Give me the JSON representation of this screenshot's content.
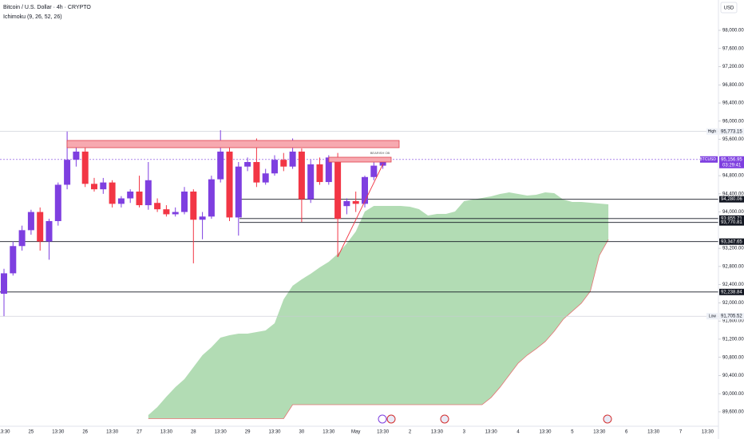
{
  "chart_data": {
    "type": "candlestick",
    "title": "Bitcoin / U.S. Dollar · 4h · CRYPTO",
    "indicator": "Ichimoku (9, 26, 52, 26)",
    "currency": "USD",
    "annotation": "BEARISH OB",
    "up_color": "#7e3fe0",
    "down_color": "#f23645",
    "cloud_color": "#a5d6a7",
    "cloud_edge_color": "#e57373",
    "categories": [
      "13:30",
      null,
      null,
      "25",
      null,
      null,
      "13:30",
      null,
      null,
      "26",
      null,
      null,
      "13:30",
      null,
      null,
      "27",
      null,
      null,
      "13:30",
      null,
      null,
      "28",
      null,
      null,
      "13:30",
      null,
      null,
      "29",
      null,
      null,
      "13:30",
      null,
      null,
      "30",
      null,
      null,
      "13:30",
      null,
      null,
      "May",
      null,
      null,
      "13:30",
      null,
      null,
      "2",
      null,
      null,
      "13:30",
      null,
      null,
      "3",
      null,
      null,
      "13:30",
      null,
      null,
      "4",
      null,
      null,
      "13:30",
      null,
      null,
      "5",
      null,
      null,
      "13:30",
      null,
      null,
      "6",
      null,
      null,
      "13:30",
      null,
      null,
      "7",
      null,
      null,
      "13:30"
    ],
    "open": [
      92200,
      92650,
      93250,
      93600,
      94000,
      93350,
      93800,
      94600,
      95150,
      95330,
      94620,
      94500,
      94650,
      94180,
      94300,
      94450,
      94150,
      94200,
      94060,
      93950,
      94000,
      94450,
      93830,
      93900,
      94720,
      95330,
      93880,
      95000,
      95100,
      94650,
      94850,
      95150,
      95000,
      95330,
      94280,
      95050,
      94660,
      95200,
      94130,
      94240,
      94180,
      94770,
      95020,
      null,
      null,
      null,
      null,
      null,
      null,
      null,
      null,
      null,
      null,
      null,
      null,
      null,
      null,
      null,
      null,
      null,
      null,
      null,
      null,
      null,
      null,
      null,
      null,
      null,
      null,
      null,
      null,
      null,
      null,
      null,
      null,
      null,
      null,
      null,
      null
    ],
    "high": [
      92750,
      93350,
      93700,
      94050,
      94100,
      93850,
      94650,
      95773.15,
      95450,
      95450,
      94750,
      94750,
      94700,
      94350,
      94500,
      94800,
      95100,
      94300,
      94150,
      94100,
      94550,
      94500,
      94000,
      94800,
      95800,
      95550,
      95100,
      95200,
      95620,
      94950,
      95250,
      95300,
      95620,
      95400,
      95150,
      95200,
      95250,
      95300,
      94300,
      94450,
      94800,
      95100,
      95200,
      null,
      null,
      null,
      null,
      null,
      null,
      null,
      null,
      null,
      null,
      null,
      null,
      null,
      null,
      null,
      null,
      null,
      null,
      null,
      null,
      null,
      null,
      null,
      null,
      null,
      null,
      null,
      null,
      null,
      null,
      null,
      null,
      null,
      null,
      null,
      null
    ],
    "low": [
      91705.52,
      92600,
      93150,
      93500,
      93150,
      92950,
      93700,
      94500,
      95000,
      94550,
      94450,
      94400,
      94100,
      94100,
      94200,
      94100,
      94050,
      94000,
      93900,
      93900,
      93950,
      92870,
      93400,
      93850,
      94650,
      93800,
      93480,
      94900,
      94550,
      94600,
      94800,
      94900,
      94950,
      93780,
      94200,
      94600,
      94600,
      93010,
      93950,
      94000,
      94100,
      94700,
      94950,
      null,
      null,
      null,
      null,
      null,
      null,
      null,
      null,
      null,
      null,
      null,
      null,
      null,
      null,
      null,
      null,
      null,
      null,
      null,
      null,
      null,
      null,
      null,
      null,
      null,
      null,
      null,
      null,
      null,
      null,
      null,
      null,
      null,
      null,
      null,
      null
    ],
    "close": [
      92650,
      93250,
      93600,
      94000,
      93350,
      93800,
      94600,
      95150,
      95330,
      94620,
      94500,
      94650,
      94180,
      94300,
      94450,
      94150,
      94700,
      94060,
      93950,
      94000,
      94450,
      93830,
      93900,
      94720,
      95330,
      93880,
      95000,
      95100,
      94650,
      94850,
      95150,
      95000,
      95330,
      94280,
      95050,
      94660,
      95200,
      93850,
      94240,
      94180,
      94770,
      95020,
      95156.95,
      null,
      null,
      null,
      null,
      null,
      null,
      null,
      null,
      null,
      null,
      null,
      null,
      null,
      null,
      null,
      null,
      null,
      null,
      null,
      null,
      null,
      null,
      null,
      null,
      null,
      null,
      null,
      null,
      null,
      null,
      null,
      null,
      null,
      null,
      null,
      null
    ],
    "cloud_upper": [
      null,
      null,
      null,
      null,
      null,
      null,
      null,
      null,
      null,
      null,
      null,
      null,
      null,
      null,
      null,
      null,
      89529,
      89705,
      89934,
      90145,
      90320,
      90583,
      90847,
      91023,
      91234,
      91287,
      91322,
      91322,
      91357,
      91392,
      91550,
      92077,
      92376,
      92517,
      92640,
      92780,
      92903,
      93079,
      93307,
      93571,
      94010,
      94133,
      94133,
      94133,
      94133,
      94116,
      94063,
      93923,
      93958,
      93958,
      94010,
      94239,
      94274,
      94309,
      94344,
      94397,
      94432,
      94397,
      94362,
      94380,
      94432,
      94415,
      94274,
      94221,
      94221,
      94204,
      94186,
      94169,
      null,
      null,
      null,
      null,
      null,
      null,
      null,
      null,
      null,
      null,
      null
    ],
    "cloud_lower": [
      null,
      null,
      null,
      null,
      null,
      null,
      null,
      null,
      null,
      null,
      null,
      null,
      null,
      null,
      null,
      null,
      89450,
      89450,
      89450,
      89450,
      89450,
      89450,
      89450,
      89450,
      89450,
      89450,
      89450,
      89450,
      89450,
      89450,
      89450,
      89450,
      89757,
      89757,
      89757,
      89757,
      89757,
      89757,
      89757,
      89757,
      89757,
      89757,
      89757,
      89757,
      89757,
      89757,
      89757,
      89757,
      89757,
      89757,
      89757,
      89757,
      89757,
      89757,
      89915,
      90145,
      90408,
      90671,
      90847,
      90988,
      91146,
      91374,
      91638,
      91814,
      91990,
      92253,
      93044,
      93395,
      null,
      null,
      null,
      null,
      null,
      null,
      null,
      null,
      null,
      null,
      null
    ],
    "ylim": [
      89318,
      98668
    ],
    "yticks": [
      {
        "value": 98000,
        "label": "98,000.00"
      },
      {
        "value": 97600,
        "label": "97,600.00"
      },
      {
        "value": 97200,
        "label": "97,200.00"
      },
      {
        "value": 96800,
        "label": "96,800.00"
      },
      {
        "value": 96400,
        "label": "96,400.00"
      },
      {
        "value": 96000,
        "label": "96,000.00"
      },
      {
        "value": 95600,
        "label": "95,600.00"
      },
      {
        "value": 94800,
        "label": "94,800.00"
      },
      {
        "value": 94400,
        "label": "94,400.00"
      },
      {
        "value": 94000,
        "label": "94,000.00"
      },
      {
        "value": 93200,
        "label": "93,200.00"
      },
      {
        "value": 92800,
        "label": "92,800.00"
      },
      {
        "value": 92400,
        "label": "92,400.00"
      },
      {
        "value": 92000,
        "label": "92,000.00"
      },
      {
        "value": 91600,
        "label": "91,600.00"
      },
      {
        "value": 91200,
        "label": "91,200.00"
      },
      {
        "value": 90800,
        "label": "90,800.00"
      },
      {
        "value": 90400,
        "label": "90,400.00"
      },
      {
        "value": 90000,
        "label": "90,000.00"
      },
      {
        "value": 89600,
        "label": "89,600.00"
      }
    ],
    "levels": [
      {
        "value": 95773.15,
        "label": "95,773.15",
        "tag": "High"
      },
      {
        "value": 95156.95,
        "label": "95,156.95",
        "tag": "BTCUSD",
        "countdown": "03:29:41"
      },
      {
        "value": 94280.06,
        "label": "94,280.06"
      },
      {
        "value": 93855.71,
        "label": "93,855.71"
      },
      {
        "value": 93770.81,
        "label": "93,770.81"
      },
      {
        "value": 93347.65,
        "label": "93,347.65"
      },
      {
        "value": 92238.84,
        "label": "92,238.84"
      },
      {
        "value": 91705.52,
        "label": "91,705.52",
        "tag": "Low"
      }
    ]
  }
}
